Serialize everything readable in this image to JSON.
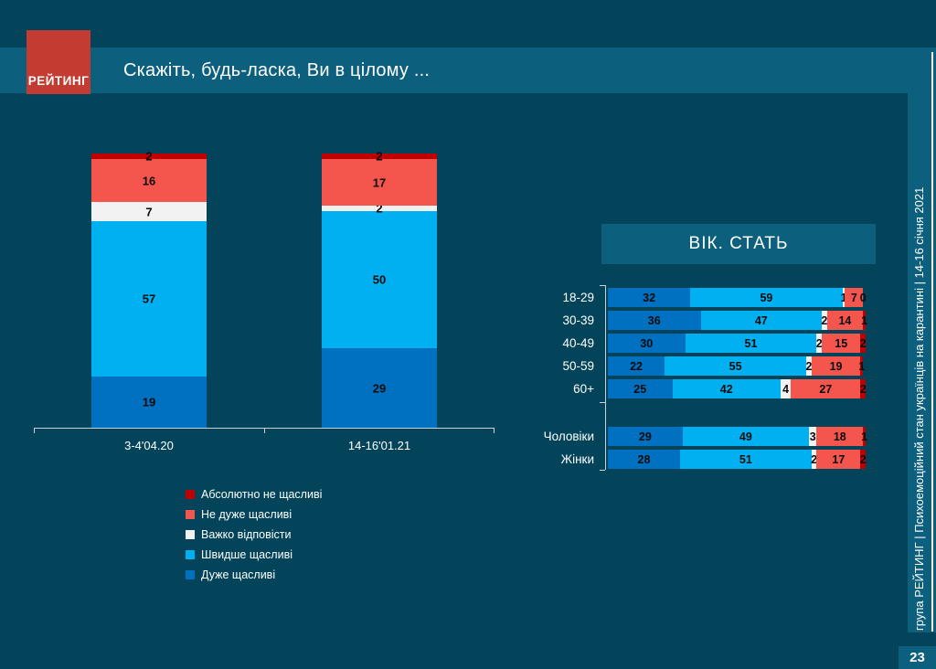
{
  "slide": {
    "logo_text": "РЕЙТИНГ",
    "title": "Скажіть, будь-ласка, Ви в цілому ...",
    "sidebar_text": "група РЕЙТИНГ | Психоемоційний стан українців на карантині | 14-16 січня 2021",
    "page_number": "23"
  },
  "colors": {
    "background": "#03445A",
    "band": "#0D5F7E",
    "logo_red": "#C43B32",
    "axis": "#C9D3D8",
    "very_happy_blue": "#0070C0",
    "rather_happy_lightblue": "#00B0F0",
    "hard_to_say_white": "#F2F2F2",
    "not_very_happy_salmon": "#F4564E",
    "absolutely_not_happy_darkred": "#C00000"
  },
  "chart_data": [
    {
      "id": "overall-by-wave",
      "type": "bar",
      "stacked": true,
      "orientation": "vertical",
      "categories": [
        "3-4'04.20",
        "14-16'01.21"
      ],
      "series": [
        {
          "name": "Дуже щасливі",
          "color": "#0070C0",
          "values": [
            19,
            29
          ]
        },
        {
          "name": "Швидше щасливі",
          "color": "#00B0F0",
          "values": [
            57,
            50
          ]
        },
        {
          "name": "Важко відповісти",
          "color": "#F2F2F2",
          "values": [
            7,
            2
          ]
        },
        {
          "name": "Не дуже щасливі",
          "color": "#F4564E",
          "values": [
            16,
            17
          ]
        },
        {
          "name": "Абсолютно не щасливі",
          "color": "#C00000",
          "values": [
            2,
            2
          ]
        }
      ],
      "value_labels": true,
      "legend_position": "bottom"
    },
    {
      "id": "by-age-and-gender",
      "type": "bar",
      "stacked": true,
      "orientation": "horizontal",
      "title": "ВІК. СТАТЬ",
      "categories": [
        "18-29",
        "30-39",
        "40-49",
        "50-59",
        "60+",
        "Чоловіки",
        "Жінки"
      ],
      "gap_after_index": 4,
      "xlim": [
        0,
        100
      ],
      "series": [
        {
          "name": "Дуже щасливі",
          "color": "#0070C0",
          "values": [
            32,
            36,
            30,
            22,
            25,
            29,
            28
          ]
        },
        {
          "name": "Швидше щасливі",
          "color": "#00B0F0",
          "values": [
            59,
            47,
            51,
            55,
            42,
            49,
            51
          ]
        },
        {
          "name": "Важко відповісти",
          "color": "#F2F2F2",
          "values": [
            1,
            2,
            2,
            2,
            4,
            3,
            2
          ]
        },
        {
          "name": "Не дуже щасливі",
          "color": "#F4564E",
          "values": [
            7,
            14,
            15,
            19,
            27,
            18,
            17
          ]
        },
        {
          "name": "Абсолютно не щасливі",
          "color": "#C00000",
          "values": [
            0,
            1,
            2,
            1,
            2,
            1,
            2
          ]
        }
      ],
      "value_labels": true
    }
  ]
}
